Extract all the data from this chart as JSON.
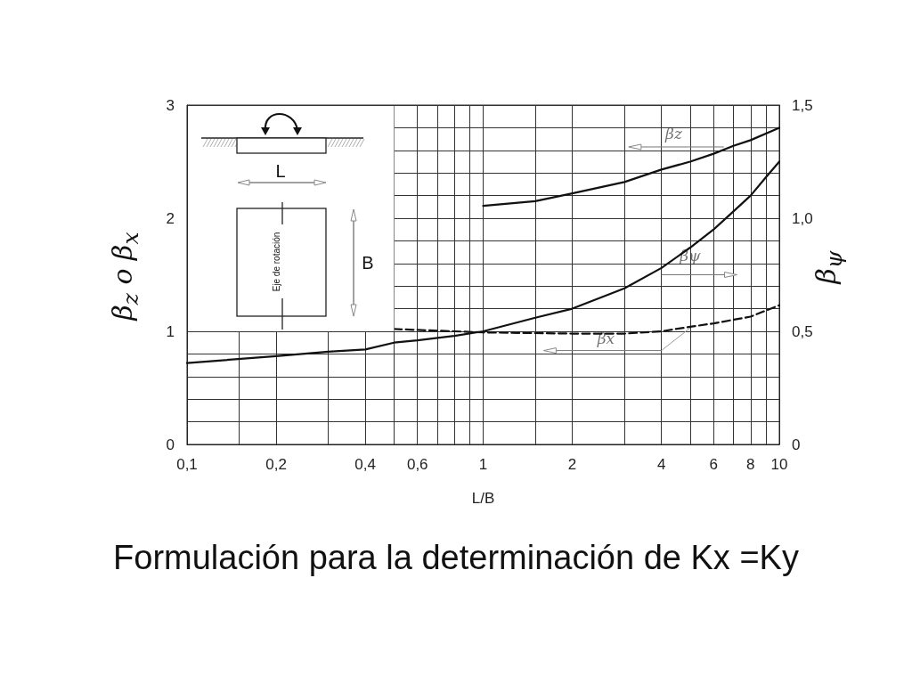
{
  "chart_data": {
    "type": "line",
    "title": "Formulación para la determinación de Kx =Ky",
    "xlabel": "L/B",
    "ylabel": "β$_{z}$  o  β$_{x}$",
    "y2label": "β$_{ψ}$",
    "annotations": [
      "L",
      "B",
      "Eje de rotación"
    ],
    "log": "x",
    "grid": true,
    "marker": "none",
    "legend": false,
    "xlim": [
      0.1,
      10
    ],
    "xticks": [
      {
        "value": 0.1,
        "label": "0,1"
      },
      {
        "value": 0.15,
        "label": null
      },
      {
        "value": 0.2,
        "label": "0,2"
      },
      {
        "value": 0.3,
        "label": null
      },
      {
        "value": 0.4,
        "label": "0,4"
      },
      {
        "value": 0.5,
        "label": null
      },
      {
        "value": 0.6,
        "label": "0,6"
      },
      {
        "value": 0.7,
        "label": null
      },
      {
        "value": 0.8,
        "label": null
      },
      {
        "value": 0.9,
        "label": null
      },
      1,
      {
        "value": 1.5,
        "label": null
      },
      2,
      {
        "value": 3,
        "label": null
      },
      4,
      {
        "value": 5,
        "label": null
      },
      6,
      {
        "value": 7,
        "label": null
      },
      8,
      {
        "value": 9,
        "label": null
      },
      10
    ],
    "ylim": [
      0,
      3
    ],
    "yticks": [
      0,
      {
        "value": 0.2,
        "label": null
      },
      {
        "value": 0.4,
        "label": null
      },
      {
        "value": 0.6,
        "label": null
      },
      {
        "value": 0.8,
        "label": null
      },
      1,
      {
        "value": 1.2,
        "label": null
      },
      {
        "value": 1.4,
        "label": null
      },
      {
        "value": 1.6,
        "label": null
      },
      {
        "value": 1.8,
        "label": null
      },
      2,
      {
        "value": 2.2,
        "label": null
      },
      {
        "value": 2.4,
        "label": null
      },
      {
        "value": 2.6,
        "label": null
      },
      {
        "value": 2.8,
        "label": null
      },
      3
    ],
    "y2lim": [
      0,
      1.5
    ],
    "y2ticks": [
      0,
      {
        "value": 0.5,
        "label": "0,5"
      },
      {
        "value": 1,
        "label": "1,0"
      },
      {
        "value": 1.5,
        "label": "1,5"
      }
    ],
    "series": [
      {
        "name": "βz",
        "color": "#111111",
        "line_style": "solid",
        "x": [
          1,
          1.5,
          2,
          3,
          4,
          5,
          6,
          7,
          8,
          10
        ],
        "values": [
          2.11,
          2.15,
          2.22,
          2.32,
          2.43,
          2.5,
          2.57,
          2.64,
          2.69,
          2.8
        ]
      },
      {
        "name": "βψ",
        "color": "#111111",
        "line_style": "solid",
        "axis": "y2",
        "x": [
          0.1,
          0.2,
          0.3,
          0.4,
          0.5,
          0.6,
          0.8,
          1,
          1.5,
          2,
          3,
          4,
          5,
          6,
          7,
          8,
          9,
          10
        ],
        "values": [
          0.36,
          0.39,
          0.41,
          0.42,
          0.45,
          0.46,
          0.48,
          0.5,
          0.56,
          0.6,
          0.69,
          0.78,
          0.87,
          0.95,
          1.03,
          1.1,
          1.18,
          1.25
        ]
      },
      {
        "name": "βx",
        "color": "#111111",
        "line_style": "dashed",
        "x": [
          0.5,
          0.8,
          1,
          2,
          3,
          4,
          5,
          6,
          8,
          10
        ],
        "values": [
          1.02,
          1.0,
          0.99,
          0.98,
          0.98,
          1.0,
          1.04,
          1.07,
          1.13,
          1.23
        ]
      }
    ]
  }
}
